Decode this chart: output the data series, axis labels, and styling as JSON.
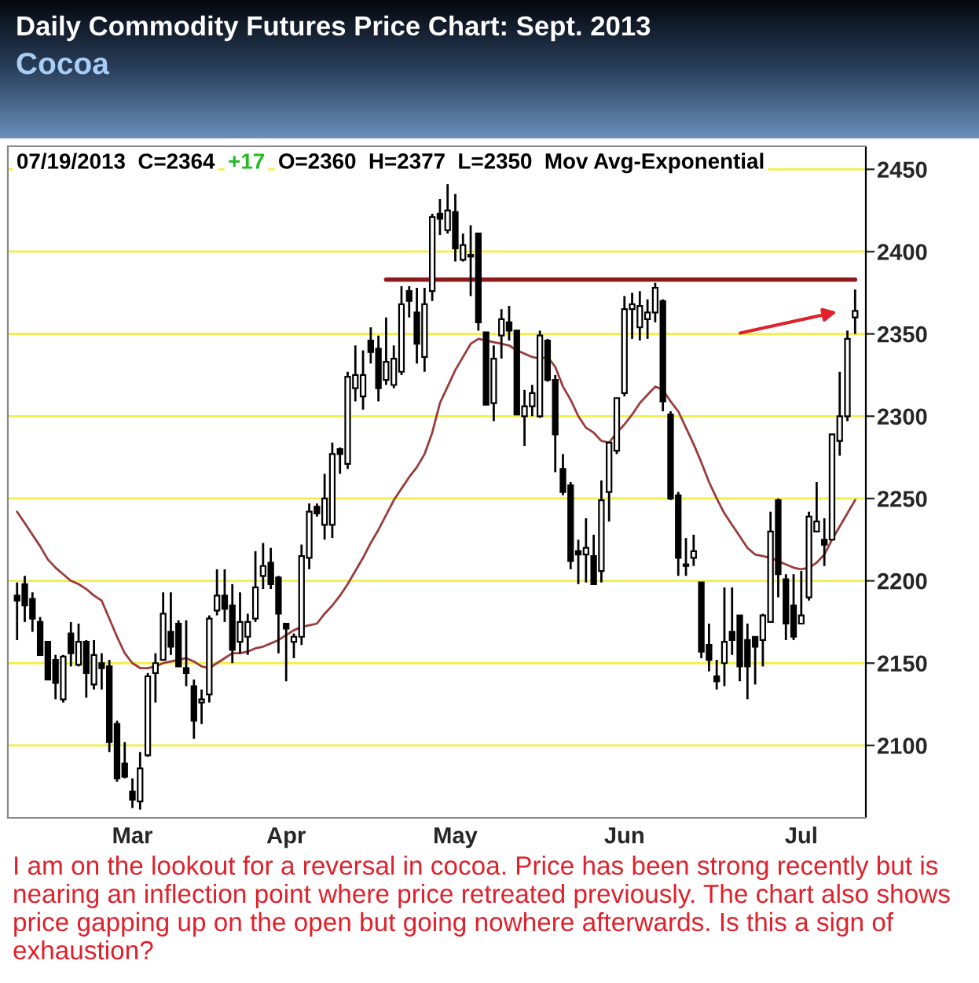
{
  "chart_data": {
    "type": "candlestick",
    "title": "Daily Commodity Futures Price Chart: Sept. 2013",
    "subtitle": "Cocoa",
    "annotations": [
      "07/19/2013  C=2364",
      "+17",
      "O=2360  H=2377  L=2350  Mov Avg-Exponential",
      "I am on the lookout for a reversal in cocoa. Price has been strong recently but is nearing an inflection point where price retreated previously. The chart also shows price gapping up on the open but going nowhere afterwards. Is this a sign of exhaustion?"
    ],
    "categories": [
      null,
      null,
      null,
      null,
      null,
      null,
      null,
      null,
      null,
      null,
      null,
      null,
      null,
      null,
      null,
      "Mar",
      null,
      null,
      null,
      null,
      null,
      null,
      null,
      null,
      null,
      null,
      null,
      null,
      null,
      null,
      null,
      null,
      null,
      null,
      null,
      "Apr",
      null,
      null,
      null,
      null,
      null,
      null,
      null,
      null,
      null,
      null,
      null,
      null,
      null,
      null,
      null,
      null,
      null,
      null,
      null,
      null,
      null,
      "May",
      null,
      null,
      null,
      null,
      null,
      null,
      null,
      null,
      null,
      null,
      null,
      null,
      null,
      null,
      null,
      null,
      null,
      null,
      null,
      null,
      null,
      "Jun",
      null,
      null,
      null,
      null,
      null,
      null,
      null,
      null,
      null,
      null,
      null,
      null,
      null,
      null,
      null,
      null,
      null,
      null,
      null,
      null,
      null,
      null,
      "Jul",
      null,
      null,
      null,
      null,
      null,
      null,
      null
    ],
    "ohlc": [
      [
        2191,
        2199,
        2164,
        2188
      ],
      [
        2198,
        2203,
        2175,
        2185
      ],
      [
        2189,
        2193,
        2169,
        2177
      ],
      [
        2175,
        2178,
        2155,
        2155
      ],
      [
        2163,
        2163,
        2140,
        2140
      ],
      [
        2152,
        2155,
        2128,
        2138
      ],
      [
        2128,
        2155,
        2126,
        2154
      ],
      [
        2168,
        2175,
        2148,
        2156
      ],
      [
        2149,
        2174,
        2148,
        2163
      ],
      [
        2163,
        2164,
        2129,
        2144
      ],
      [
        2137,
        2164,
        2134,
        2155
      ],
      [
        2150,
        2156,
        2134,
        2147
      ],
      [
        2148,
        2152,
        2096,
        2102
      ],
      [
        2113,
        2115,
        2078,
        2080
      ],
      [
        2089,
        2102,
        2080,
        2081
      ],
      [
        2072,
        2080,
        2062,
        2067
      ],
      [
        2066,
        2096,
        2061,
        2086
      ],
      [
        2094,
        2144,
        2093,
        2142
      ],
      [
        2144,
        2156,
        2126,
        2150
      ],
      [
        2152,
        2193,
        2152,
        2180
      ],
      [
        2169,
        2193,
        2155,
        2160
      ],
      [
        2174,
        2176,
        2148,
        2148
      ],
      [
        2147,
        2176,
        2136,
        2144
      ],
      [
        2136,
        2140,
        2104,
        2115
      ],
      [
        2126,
        2134,
        2113,
        2128
      ],
      [
        2131,
        2179,
        2126,
        2177
      ],
      [
        2182,
        2207,
        2179,
        2191
      ],
      [
        2191,
        2207,
        2175,
        2183
      ],
      [
        2185,
        2198,
        2150,
        2158
      ],
      [
        2163,
        2193,
        2156,
        2175
      ],
      [
        2166,
        2180,
        2155,
        2175
      ],
      [
        2177,
        2218,
        2175,
        2196
      ],
      [
        2203,
        2223,
        2195,
        2209
      ],
      [
        2211,
        2220,
        2195,
        2198
      ],
      [
        2202,
        2203,
        2156,
        2180
      ],
      [
        2174,
        2174,
        2139,
        2171
      ],
      [
        2163,
        2168,
        2153,
        2166
      ],
      [
        2166,
        2222,
        2161,
        2215
      ],
      [
        2214,
        2247,
        2207,
        2242
      ],
      [
        2245,
        2247,
        2239,
        2241
      ],
      [
        2234,
        2265,
        2225,
        2250
      ],
      [
        2234,
        2284,
        2226,
        2277
      ],
      [
        2280,
        2281,
        2265,
        2277
      ],
      [
        2271,
        2327,
        2268,
        2324
      ],
      [
        2317,
        2343,
        2309,
        2325
      ],
      [
        2312,
        2340,
        2304,
        2325
      ],
      [
        2346,
        2354,
        2332,
        2339
      ],
      [
        2341,
        2349,
        2309,
        2317
      ],
      [
        2322,
        2360,
        2319,
        2333
      ],
      [
        2319,
        2343,
        2317,
        2335
      ],
      [
        2327,
        2379,
        2325,
        2368
      ],
      [
        2376,
        2379,
        2360,
        2370
      ],
      [
        2363,
        2378,
        2332,
        2344
      ],
      [
        2336,
        2378,
        2327,
        2368
      ],
      [
        2376,
        2423,
        2370,
        2421
      ],
      [
        2423,
        2432,
        2410,
        2420
      ],
      [
        2413,
        2441,
        2411,
        2425
      ],
      [
        2424,
        2435,
        2394,
        2402
      ],
      [
        2395,
        2411,
        2394,
        2404
      ],
      [
        2398,
        2416,
        2373,
        2397
      ],
      [
        2411,
        2411,
        2352,
        2357
      ],
      [
        2351,
        2351,
        2307,
        2307
      ],
      [
        2308,
        2343,
        2297,
        2335
      ],
      [
        2349,
        2365,
        2335,
        2359
      ],
      [
        2357,
        2367,
        2346,
        2352
      ],
      [
        2352,
        2352,
        2301,
        2301
      ],
      [
        2300,
        2316,
        2282,
        2306
      ],
      [
        2306,
        2319,
        2300,
        2314
      ],
      [
        2300,
        2352,
        2299,
        2349
      ],
      [
        2346,
        2347,
        2321,
        2322
      ],
      [
        2322,
        2325,
        2266,
        2289
      ],
      [
        2268,
        2277,
        2252,
        2254
      ],
      [
        2258,
        2260,
        2207,
        2212
      ],
      [
        2218,
        2225,
        2198,
        2216
      ],
      [
        2216,
        2238,
        2199,
        2220
      ],
      [
        2215,
        2228,
        2198,
        2198
      ],
      [
        2206,
        2261,
        2199,
        2249
      ],
      [
        2254,
        2284,
        2236,
        2284
      ],
      [
        2279,
        2311,
        2277,
        2311
      ],
      [
        2314,
        2373,
        2312,
        2365
      ],
      [
        2365,
        2375,
        2347,
        2368
      ],
      [
        2354,
        2376,
        2346,
        2367
      ],
      [
        2359,
        2371,
        2347,
        2363
      ],
      [
        2363,
        2381,
        2357,
        2378
      ],
      [
        2370,
        2371,
        2303,
        2309
      ],
      [
        2301,
        2303,
        2249,
        2250
      ],
      [
        2252,
        2254,
        2203,
        2214
      ],
      [
        2210,
        2226,
        2203,
        2209
      ],
      [
        2214,
        2228,
        2209,
        2218
      ],
      [
        2199,
        2199,
        2153,
        2157
      ],
      [
        2161,
        2174,
        2145,
        2152
      ],
      [
        2142,
        2152,
        2134,
        2139
      ],
      [
        2150,
        2196,
        2136,
        2163
      ],
      [
        2169,
        2196,
        2155,
        2164
      ],
      [
        2179,
        2179,
        2139,
        2148
      ],
      [
        2164,
        2174,
        2128,
        2148
      ],
      [
        2166,
        2166,
        2137,
        2160
      ],
      [
        2164,
        2180,
        2148,
        2179
      ],
      [
        2175,
        2242,
        2175,
        2230
      ],
      [
        2249,
        2250,
        2190,
        2204
      ],
      [
        2201,
        2204,
        2164,
        2174
      ],
      [
        2185,
        2204,
        2164,
        2166
      ],
      [
        2174,
        2206,
        2174,
        2179
      ],
      [
        2190,
        2242,
        2188,
        2239
      ],
      [
        2230,
        2260,
        2230,
        2236
      ],
      [
        2225,
        2238,
        2209,
        2222
      ],
      [
        2225,
        2289,
        2225,
        2289
      ],
      [
        2285,
        2327,
        2276,
        2300
      ],
      [
        2300,
        2352,
        2297,
        2347
      ],
      [
        2360,
        2377,
        2350,
        2364
      ]
    ],
    "series": [
      {
        "type": "line",
        "color": "#9a3b3b",
        "values": [
          2242,
          2235,
          2228,
          2221,
          2213,
          2208,
          2204,
          2200,
          2198,
          2195,
          2191,
          2188,
          2177,
          2166,
          2156,
          2150,
          2147,
          2147,
          2148,
          2150,
          2151,
          2152,
          2153,
          2151,
          2148,
          2147,
          2150,
          2153,
          2156,
          2156,
          2157,
          2159,
          2160,
          2162,
          2164,
          2167,
          2170,
          2172,
          2173,
          2174,
          2180,
          2185,
          2191,
          2198,
          2206,
          2214,
          2223,
          2231,
          2240,
          2249,
          2256,
          2263,
          2269,
          2277,
          2290,
          2308,
          2318,
          2328,
          2336,
          2344,
          2347,
          2346,
          2345,
          2344,
          2343,
          2340,
          2338,
          2336,
          2335,
          2336,
          2330,
          2318,
          2310,
          2300,
          2293,
          2290,
          2285,
          2284,
          2290,
          2295,
          2301,
          2308,
          2313,
          2318,
          2316,
          2309,
          2303,
          2293,
          2283,
          2272,
          2260,
          2250,
          2241,
          2234,
          2227,
          2220,
          2216,
          2215,
          2214,
          2212,
          2210,
          2208,
          2207,
          2208,
          2211,
          2216,
          2225,
          2233,
          2241,
          2249
        ]
      },
      {
        "type": "line",
        "color": "#8b1a1a",
        "values": [
          null,
          null,
          null,
          null,
          null,
          null,
          null,
          null,
          null,
          null,
          null,
          null,
          null,
          null,
          null,
          null,
          null,
          null,
          null,
          null,
          null,
          null,
          null,
          null,
          null,
          null,
          null,
          null,
          null,
          null,
          null,
          null,
          null,
          null,
          null,
          null,
          null,
          null,
          null,
          null,
          null,
          null,
          null,
          null,
          null,
          null,
          null,
          null,
          2383,
          2383,
          2383,
          2383,
          2383,
          2383,
          2383,
          2383,
          2383,
          2383,
          2383,
          2383,
          2383,
          2383,
          2383,
          2383,
          2383,
          2383,
          2383,
          2383,
          2383,
          2383,
          2383,
          2383,
          2383,
          2383,
          2383,
          2383,
          2383,
          2383,
          2383,
          2383,
          2383,
          2383,
          2383,
          2383,
          2383,
          2383,
          2383,
          2383,
          2383,
          2383,
          2383,
          2383,
          2383,
          2383,
          2383,
          2383,
          2383,
          2383,
          2383,
          2383,
          2383,
          2383,
          2383,
          2383,
          2383,
          2383,
          2383,
          2383,
          2383,
          2383
        ]
      }
    ],
    "ylim": [
      2056,
      2464
    ],
    "yticks": [
      2100,
      2150,
      2200,
      2250,
      2300,
      2350,
      2400,
      2450
    ],
    "grid": "y"
  }
}
